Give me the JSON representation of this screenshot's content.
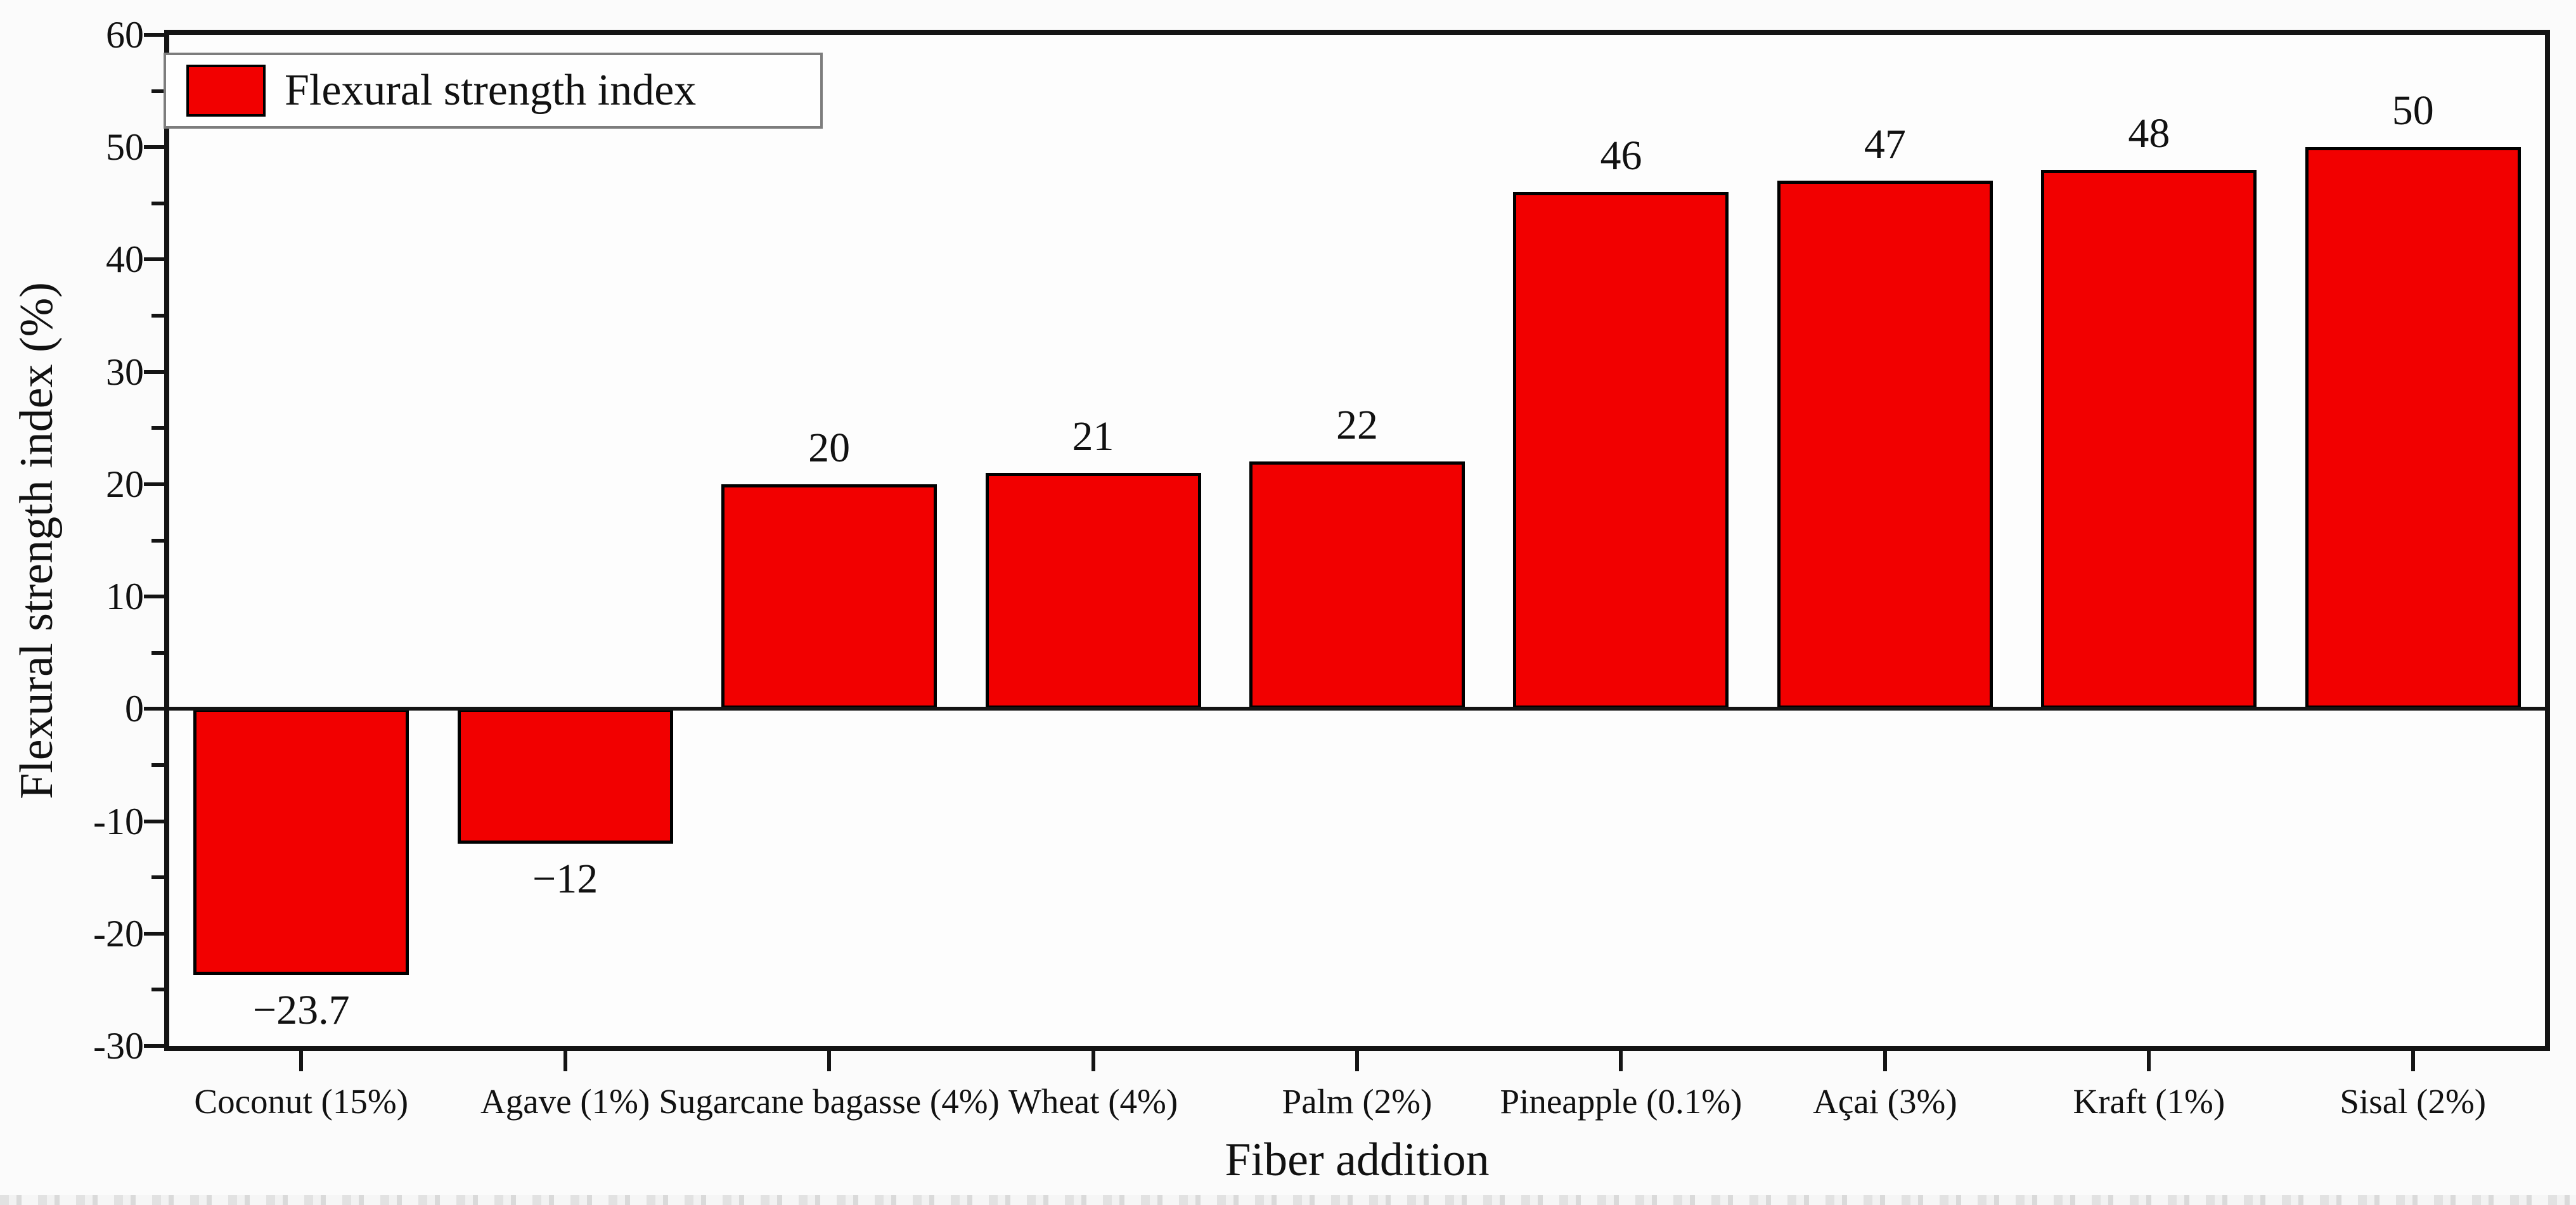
{
  "colors": {
    "bar_fill": "#f20000",
    "bar_border": "#000000",
    "axis": "#141414",
    "legend_border": "#7d7d7d",
    "background": "#fbfbfb"
  },
  "chart_data": {
    "type": "bar",
    "title": "",
    "xlabel": "Fiber addition",
    "ylabel": "Flexural strength index (%)",
    "legend_label": "Flexural strength index",
    "legend_position": "top-left",
    "grid": false,
    "categories": [
      "Coconut (15%)",
      "Agave (1%)",
      "Sugarcane bagasse (4%)",
      "Wheat (4%)",
      "Palm (2%)",
      "Pineapple (0.1%)",
      "Açai (3%)",
      "Kraft (1%)",
      "Sisal (2%)"
    ],
    "values": [
      -23.7,
      -12,
      20,
      21,
      22,
      46,
      47,
      48,
      50
    ],
    "value_labels": [
      "−23.7",
      "−12",
      "20",
      "21",
      "22",
      "46",
      "47",
      "48",
      "50"
    ],
    "ylim": [
      -30,
      60
    ],
    "ytick_step": 10,
    "ytick_minor_step": 5,
    "ytick_labels": [
      "60",
      "50",
      "40",
      "30",
      "20",
      "10",
      "0",
      "-10",
      "-20",
      "-30"
    ]
  }
}
